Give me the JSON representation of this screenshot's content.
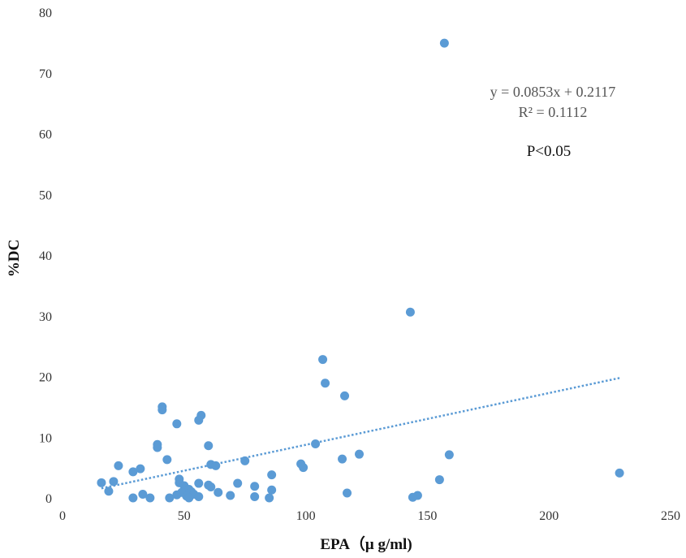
{
  "chart_data": {
    "type": "scatter",
    "title": "",
    "xlabel": "EPA（μ g/ml)",
    "ylabel": "%DC",
    "xlim": [
      0,
      250
    ],
    "ylim": [
      0,
      80
    ],
    "xticks": [
      0,
      50,
      100,
      150,
      200,
      250
    ],
    "yticks": [
      0,
      10,
      20,
      30,
      40,
      50,
      60,
      70,
      80
    ],
    "grid": false,
    "legend": "none",
    "point_color": "#5b9bd5",
    "trendline": {
      "slope": 0.0853,
      "intercept": 0.2117,
      "x_range": [
        16,
        229
      ],
      "color": "#5b9bd5",
      "style": "dotted"
    },
    "annotations": {
      "equation": "y = 0.0853x + 0.2117",
      "r_squared": "R² = 0.1112",
      "p_value": "P<0.05"
    },
    "points": [
      {
        "x": 157,
        "y": 74.9
      },
      {
        "x": 143,
        "y": 30.6
      },
      {
        "x": 107,
        "y": 22.8
      },
      {
        "x": 108,
        "y": 18.9
      },
      {
        "x": 116,
        "y": 16.8
      },
      {
        "x": 41,
        "y": 15.0
      },
      {
        "x": 41,
        "y": 14.5
      },
      {
        "x": 57,
        "y": 13.6
      },
      {
        "x": 56,
        "y": 12.8
      },
      {
        "x": 47,
        "y": 12.2
      },
      {
        "x": 104,
        "y": 8.9
      },
      {
        "x": 39,
        "y": 8.8
      },
      {
        "x": 39,
        "y": 8.3
      },
      {
        "x": 60,
        "y": 8.6
      },
      {
        "x": 159,
        "y": 7.1
      },
      {
        "x": 122,
        "y": 7.2
      },
      {
        "x": 115,
        "y": 6.4
      },
      {
        "x": 43,
        "y": 6.3
      },
      {
        "x": 75,
        "y": 6.1
      },
      {
        "x": 98,
        "y": 5.6
      },
      {
        "x": 99,
        "y": 5.0
      },
      {
        "x": 61,
        "y": 5.5
      },
      {
        "x": 63,
        "y": 5.3
      },
      {
        "x": 23,
        "y": 5.3
      },
      {
        "x": 32,
        "y": 4.8
      },
      {
        "x": 29,
        "y": 4.3
      },
      {
        "x": 229,
        "y": 4.1
      },
      {
        "x": 86,
        "y": 3.8
      },
      {
        "x": 48,
        "y": 3.1
      },
      {
        "x": 155,
        "y": 3.0
      },
      {
        "x": 21,
        "y": 2.7
      },
      {
        "x": 16,
        "y": 2.5
      },
      {
        "x": 48,
        "y": 2.5
      },
      {
        "x": 56,
        "y": 2.4
      },
      {
        "x": 72,
        "y": 2.4
      },
      {
        "x": 60,
        "y": 2.1
      },
      {
        "x": 50,
        "y": 2.0
      },
      {
        "x": 79,
        "y": 1.9
      },
      {
        "x": 61,
        "y": 1.8
      },
      {
        "x": 52,
        "y": 1.4
      },
      {
        "x": 86,
        "y": 1.3
      },
      {
        "x": 19,
        "y": 1.1
      },
      {
        "x": 53,
        "y": 1.0
      },
      {
        "x": 64,
        "y": 0.9
      },
      {
        "x": 49,
        "y": 0.9
      },
      {
        "x": 117,
        "y": 0.8
      },
      {
        "x": 33,
        "y": 0.6
      },
      {
        "x": 54,
        "y": 0.6
      },
      {
        "x": 47,
        "y": 0.5
      },
      {
        "x": 69,
        "y": 0.4
      },
      {
        "x": 146,
        "y": 0.4
      },
      {
        "x": 51,
        "y": 0.3
      },
      {
        "x": 79,
        "y": 0.2
      },
      {
        "x": 56,
        "y": 0.2
      },
      {
        "x": 144,
        "y": 0.1
      },
      {
        "x": 29,
        "y": 0.0
      },
      {
        "x": 36,
        "y": 0.0
      },
      {
        "x": 44,
        "y": 0.0
      },
      {
        "x": 52,
        "y": 0.0
      },
      {
        "x": 85,
        "y": 0.0
      }
    ]
  }
}
